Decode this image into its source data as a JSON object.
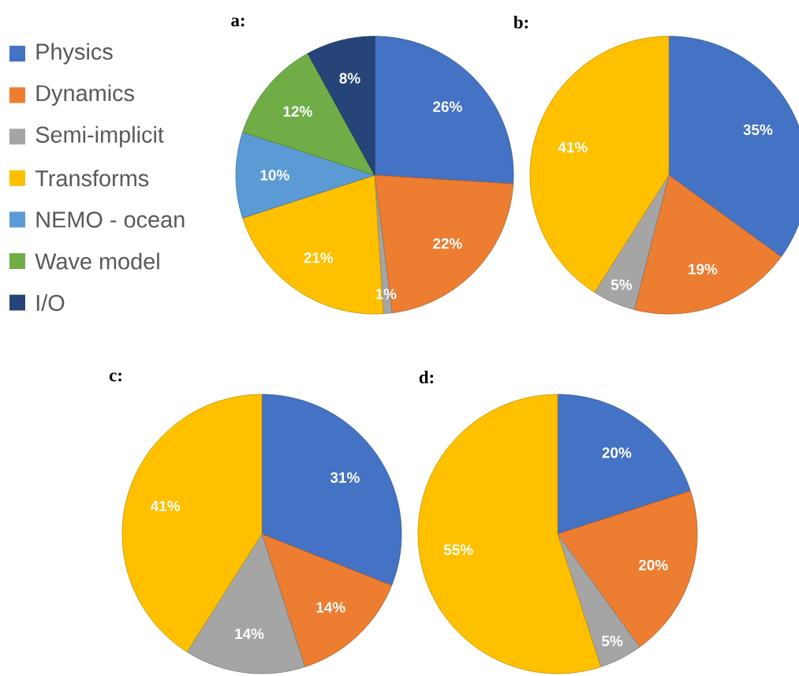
{
  "chart_data": [
    {
      "type": "pie",
      "title": "a:",
      "legend": "left",
      "categories": [
        "Physics",
        "Dynamics",
        "Semi-implicit",
        "Transforms",
        "NEMO - ocean",
        "Wave model",
        "I/O"
      ],
      "values": [
        26,
        22,
        1,
        21,
        10,
        12,
        8
      ],
      "value_labels": [
        "26%",
        "22%",
        "1%",
        "21%",
        "10%",
        "12%",
        "8%"
      ],
      "colors": [
        "#4472c4",
        "#ed7d31",
        "#a5a5a5",
        "#ffc000",
        "#5b9bd5",
        "#70ad47",
        "#264478"
      ]
    },
    {
      "type": "pie",
      "title": "b:",
      "categories": [
        null,
        null,
        null,
        null
      ],
      "values": [
        35,
        19,
        5,
        41
      ],
      "value_labels": [
        "35%",
        "19%",
        "5%",
        "41%"
      ],
      "colors": [
        "#4472c4",
        "#ed7d31",
        "#a5a5a5",
        "#ffc000"
      ]
    },
    {
      "type": "pie",
      "title": "c:",
      "categories": [
        null,
        null,
        null,
        null
      ],
      "values": [
        31,
        14,
        14,
        41
      ],
      "value_labels": [
        "31%",
        "14%",
        "14%",
        "41%"
      ],
      "colors": [
        "#4472c4",
        "#ed7d31",
        "#a5a5a5",
        "#ffc000"
      ]
    },
    {
      "type": "pie",
      "title": "d:",
      "categories": [
        null,
        null,
        null,
        null
      ],
      "values": [
        20,
        20,
        5,
        55
      ],
      "value_labels": [
        "20%",
        "20%",
        "5%",
        "55%"
      ],
      "colors": [
        "#4472c4",
        "#ed7d31",
        "#a5a5a5",
        "#ffc000"
      ]
    }
  ]
}
